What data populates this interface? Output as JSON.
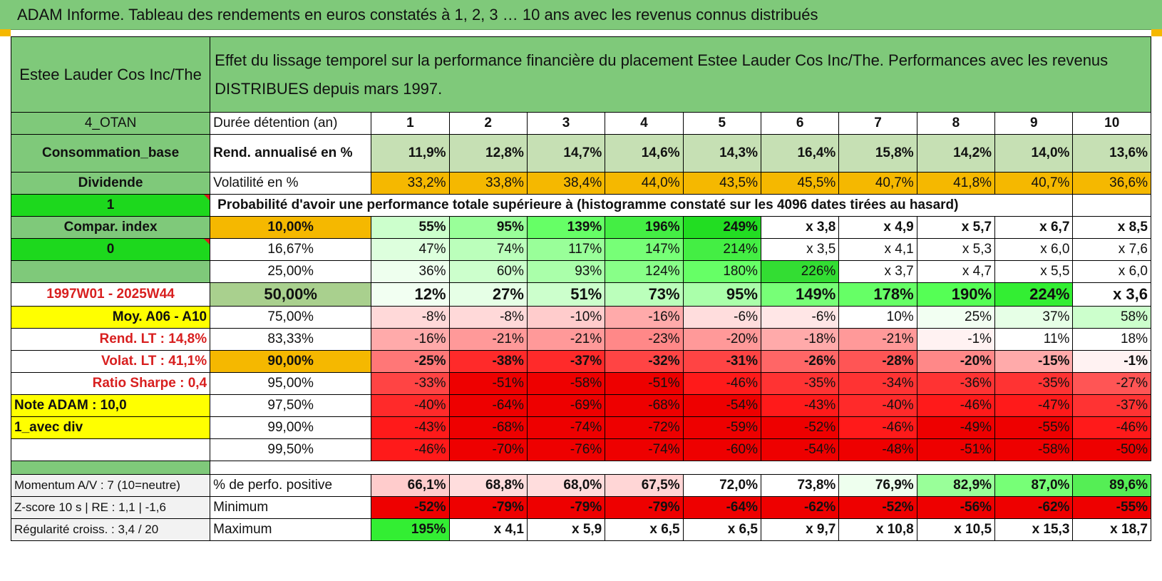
{
  "header": {
    "title": "ADAM Informe. Tableau des rendements en euros constatés à 1, 2, 3 … 10 ans avec les revenus connus distribués"
  },
  "colors": {
    "header_green": "#7fc97a",
    "bright_green": "#1dd81d",
    "orange": "#f5b800",
    "yellow": "#ffff00",
    "red_text": "#d81f1f"
  },
  "asset": {
    "name": "Estee Lauder Cos Inc/The",
    "description": "Effet du lissage temporel sur la performance financière du placement Estee Lauder Cos Inc/The. Performances avec les revenus DISTRIBUES depuis mars 1997."
  },
  "side": {
    "code": "4_OTAN",
    "sector": "Consommation_base",
    "type": "Dividende",
    "flag1": "1",
    "compar_label": "Compar. index",
    "flag0": "0",
    "period": "1997W01 - 2025W44",
    "moy": "Moy. A06 - A10",
    "rend_lt": "Rend. LT :    14,8%",
    "volat_lt": "Volat. LT :    41,1%",
    "sharpe": "Ratio Sharpe :     0,4",
    "note": "Note ADAM : 10,0",
    "avec_div": "1_avec div",
    "momentum": "Momentum A/V : 7 (10=neutre)",
    "zscore": "Z-score 10 s | RE : 1,1 | -1,6",
    "regularite": "Régularité croiss. : 3,4 / 20"
  },
  "table": {
    "duree_label": "Durée détention (an)",
    "years": [
      "1",
      "2",
      "3",
      "4",
      "5",
      "6",
      "7",
      "8",
      "9",
      "10"
    ],
    "rend_label": "Rend. annualisé en %",
    "rend": [
      "11,9%",
      "12,8%",
      "14,7%",
      "14,6%",
      "14,3%",
      "16,4%",
      "15,8%",
      "14,2%",
      "14,0%",
      "13,6%"
    ],
    "vol_label": "Volatilité en %",
    "vol": [
      "33,2%",
      "33,8%",
      "38,4%",
      "44,0%",
      "43,5%",
      "45,5%",
      "40,7%",
      "41,8%",
      "40,7%",
      "36,6%"
    ],
    "prob_title": "Probabilité d'avoir une performance totale supérieure à (histogramme constaté sur les 4096 dates tirées au hasard)",
    "quantiles": [
      {
        "label": "10,00%",
        "cells": [
          "55%",
          "95%",
          "139%",
          "196%",
          "249%",
          "x 3,8",
          "x 4,9",
          "x 5,7",
          "x 6,7",
          "x 8,5"
        ]
      },
      {
        "label": "16,67%",
        "cells": [
          "47%",
          "74%",
          "117%",
          "147%",
          "214%",
          "x 3,5",
          "x 4,1",
          "x 5,3",
          "x 6,0",
          "x 7,6"
        ]
      },
      {
        "label": "25,00%",
        "cells": [
          "36%",
          "60%",
          "93%",
          "124%",
          "180%",
          "226%",
          "x 3,7",
          "x 4,7",
          "x 5,5",
          "x 6,0"
        ]
      },
      {
        "label": "50,00%",
        "cells": [
          "12%",
          "27%",
          "51%",
          "73%",
          "95%",
          "149%",
          "178%",
          "190%",
          "224%",
          "x 3,6"
        ]
      },
      {
        "label": "75,00%",
        "cells": [
          "-8%",
          "-8%",
          "-10%",
          "-16%",
          "-6%",
          "-6%",
          "10%",
          "25%",
          "37%",
          "58%"
        ]
      },
      {
        "label": "83,33%",
        "cells": [
          "-16%",
          "-21%",
          "-21%",
          "-23%",
          "-20%",
          "-18%",
          "-21%",
          "-1%",
          "11%",
          "18%"
        ]
      },
      {
        "label": "90,00%",
        "cells": [
          "-25%",
          "-38%",
          "-37%",
          "-32%",
          "-31%",
          "-26%",
          "-28%",
          "-20%",
          "-15%",
          "-1%"
        ]
      },
      {
        "label": "95,00%",
        "cells": [
          "-33%",
          "-51%",
          "-58%",
          "-51%",
          "-46%",
          "-35%",
          "-34%",
          "-36%",
          "-35%",
          "-27%"
        ]
      },
      {
        "label": "97,50%",
        "cells": [
          "-40%",
          "-64%",
          "-69%",
          "-68%",
          "-54%",
          "-43%",
          "-40%",
          "-46%",
          "-47%",
          "-37%"
        ]
      },
      {
        "label": "99,00%",
        "cells": [
          "-43%",
          "-68%",
          "-74%",
          "-72%",
          "-59%",
          "-52%",
          "-46%",
          "-49%",
          "-55%",
          "-46%"
        ]
      },
      {
        "label": "99,50%",
        "cells": [
          "-46%",
          "-70%",
          "-76%",
          "-74%",
          "-60%",
          "-54%",
          "-48%",
          "-51%",
          "-58%",
          "-50%"
        ]
      }
    ],
    "pos_label": "% de perfo. positive",
    "pos": [
      "66,1%",
      "68,8%",
      "68,0%",
      "67,5%",
      "72,0%",
      "73,8%",
      "76,9%",
      "82,9%",
      "87,0%",
      "89,6%"
    ],
    "min_label": "Minimum",
    "min": [
      "-52%",
      "-79%",
      "-79%",
      "-79%",
      "-64%",
      "-62%",
      "-52%",
      "-56%",
      "-62%",
      "-55%"
    ],
    "max_label": "Maximum",
    "max": [
      "195%",
      "x 4,1",
      "x 5,9",
      "x 6,5",
      "x 6,5",
      "x 9,7",
      "x 10,8",
      "x 10,5",
      "x 15,3",
      "x 18,7"
    ]
  }
}
